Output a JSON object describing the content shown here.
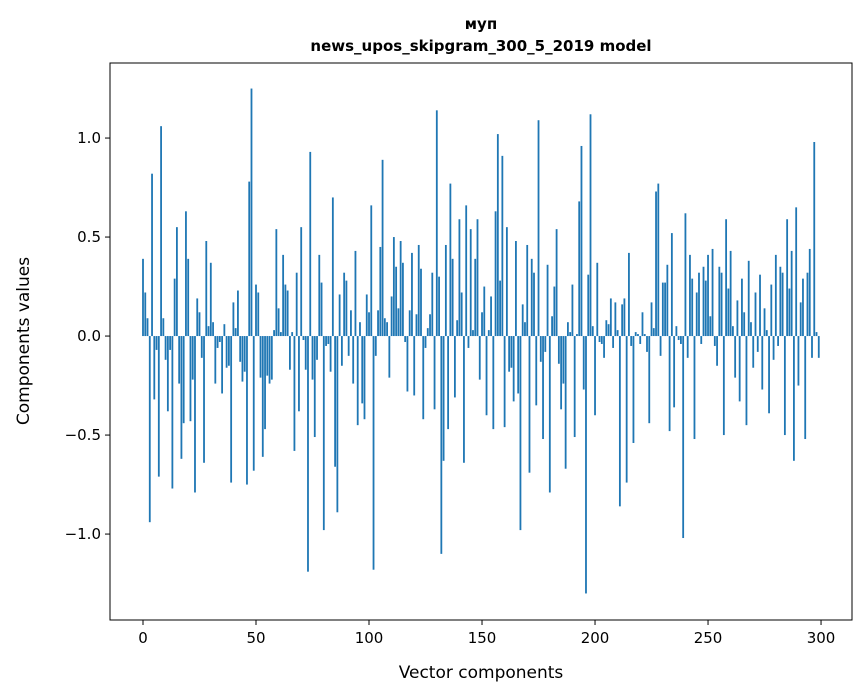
{
  "chart_data": {
    "type": "bar",
    "title": "муп",
    "subtitle": "news_upos_skipgram_300_5_2019 model",
    "xlabel": "Vector components",
    "ylabel": "Components values",
    "xlim": [
      -14.6,
      313.7
    ],
    "ylim": [
      -1.434,
      1.379
    ],
    "xticks": [
      0,
      50,
      100,
      150,
      200,
      250,
      300
    ],
    "xtick_labels": [
      "0",
      "50",
      "100",
      "150",
      "200",
      "250",
      "300"
    ],
    "yticks": [
      1.0,
      0.5,
      0.0,
      -0.5,
      -1.0
    ],
    "ytick_labels": [
      "1.0",
      "0.5",
      "0.0",
      "−0.5",
      "−1.0"
    ],
    "grid": false,
    "bar_color": "#1f77b4",
    "values": [
      0.39,
      0.22,
      0.09,
      -0.94,
      0.82,
      -0.32,
      -0.07,
      -0.71,
      1.06,
      0.09,
      -0.12,
      -0.38,
      -0.07,
      -0.77,
      0.29,
      0.55,
      -0.24,
      -0.62,
      -0.44,
      0.63,
      0.39,
      -0.43,
      -0.22,
      -0.79,
      0.19,
      0.12,
      -0.11,
      -0.64,
      0.48,
      0.05,
      0.37,
      0.07,
      -0.24,
      -0.06,
      -0.03,
      -0.29,
      0.06,
      -0.16,
      -0.15,
      -0.74,
      0.17,
      0.04,
      0.23,
      -0.13,
      -0.23,
      -0.18,
      -0.75,
      0.78,
      1.25,
      -0.68,
      0.26,
      0.22,
      -0.21,
      -0.61,
      -0.47,
      -0.2,
      -0.24,
      -0.22,
      0.03,
      0.54,
      0.14,
      0.02,
      0.41,
      0.26,
      0.23,
      -0.17,
      0.02,
      -0.58,
      0.32,
      -0.38,
      0.55,
      -0.02,
      -0.17,
      -1.19,
      0.93,
      -0.22,
      -0.51,
      -0.12,
      0.41,
      0.27,
      -0.98,
      -0.05,
      -0.04,
      -0.18,
      0.7,
      -0.66,
      -0.89,
      0.21,
      -0.15,
      0.32,
      0.28,
      -0.1,
      0.13,
      -0.24,
      0.43,
      -0.45,
      0.07,
      -0.34,
      -0.42,
      0.21,
      0.12,
      0.66,
      -1.18,
      -0.1,
      0.13,
      0.45,
      0.89,
      0.09,
      0.07,
      -0.21,
      0.2,
      0.5,
      0.35,
      0.14,
      0.48,
      0.37,
      -0.03,
      -0.28,
      0.13,
      0.42,
      -0.3,
      0.11,
      0.46,
      0.34,
      -0.42,
      -0.06,
      0.04,
      0.11,
      0.32,
      -0.37,
      1.14,
      0.3,
      -1.1,
      -0.63,
      0.46,
      -0.47,
      0.77,
      0.39,
      -0.31,
      0.08,
      0.59,
      0.22,
      -0.64,
      0.66,
      -0.06,
      0.54,
      0.03,
      0.39,
      0.59,
      -0.22,
      0.12,
      0.25,
      -0.4,
      0.03,
      0.2,
      -0.47,
      0.63,
      1.02,
      0.28,
      0.91,
      -0.46,
      0.55,
      -0.18,
      -0.16,
      -0.33,
      0.48,
      -0.29,
      -0.98,
      0.16,
      0.07,
      0.46,
      -0.69,
      0.39,
      0.32,
      -0.35,
      1.09,
      -0.13,
      -0.52,
      -0.08,
      0.36,
      -0.79,
      0.1,
      0.25,
      0.54,
      -0.14,
      -0.37,
      -0.24,
      -0.67,
      0.07,
      0.02,
      0.26,
      -0.51,
      0.01,
      0.68,
      0.96,
      -0.27,
      -1.3,
      0.31,
      1.12,
      0.05,
      -0.4,
      0.37,
      -0.03,
      -0.04,
      -0.11,
      0.08,
      0.06,
      0.19,
      -0.06,
      0.17,
      0.03,
      -0.86,
      0.16,
      0.19,
      -0.74,
      0.42,
      -0.05,
      -0.54,
      0.02,
      0.01,
      -0.04,
      0.12,
      0.01,
      -0.08,
      -0.44,
      0.17,
      0.04,
      0.73,
      0.77,
      -0.1,
      0.27,
      0.27,
      0.36,
      -0.48,
      0.52,
      -0.36,
      0.05,
      -0.02,
      -0.04,
      -1.02,
      0.62,
      -0.11,
      0.41,
      0.29,
      -0.52,
      0.22,
      0.32,
      -0.04,
      0.35,
      0.28,
      0.41,
      0.1,
      0.44,
      -0.05,
      -0.15,
      0.35,
      0.32,
      -0.5,
      0.59,
      0.24,
      0.43,
      0.05,
      -0.21,
      0.18,
      -0.33,
      0.29,
      0.12,
      -0.45,
      0.38,
      0.07,
      -0.16,
      0.22,
      -0.08,
      0.31,
      -0.27,
      0.14,
      0.03,
      -0.39,
      0.26,
      -0.12,
      0.41,
      -0.05,
      0.35,
      0.32,
      -0.5,
      0.59,
      0.24,
      0.43,
      -0.63,
      0.65,
      -0.25,
      0.17,
      0.29,
      -0.52,
      0.32,
      0.44,
      -0.11,
      0.98,
      0.02,
      -0.11
    ]
  }
}
